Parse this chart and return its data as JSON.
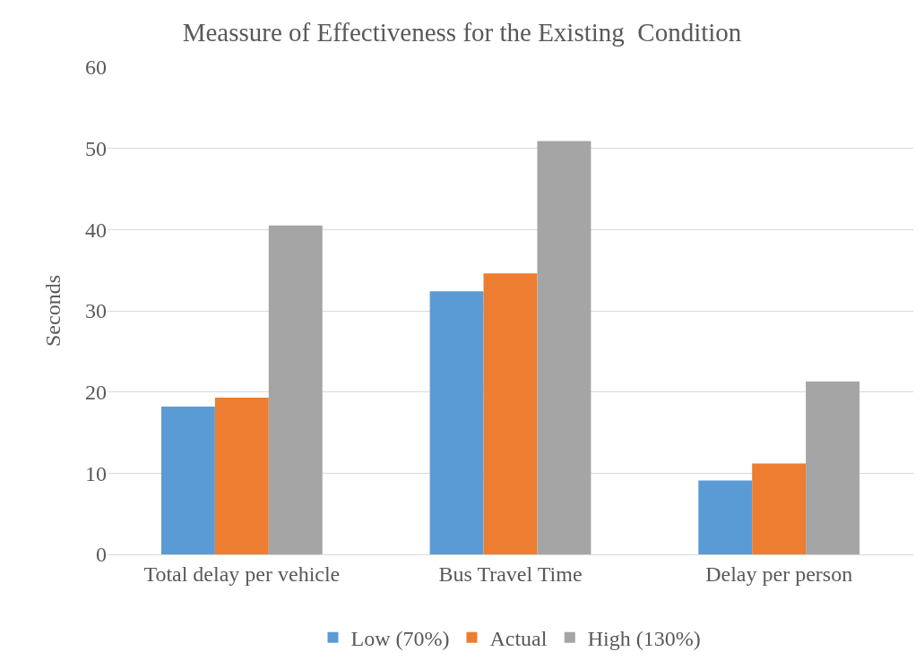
{
  "chart_data": {
    "type": "bar",
    "title": "Meassure of Effectiveness for the Existing  Condition",
    "ylabel": "Seconds",
    "categories": [
      "Total delay per vehicle",
      "Bus Travel Time",
      "Delay per person"
    ],
    "series": [
      {
        "name": "Low (70%)",
        "color": "#5b9bd5",
        "values": [
          18.2,
          32.4,
          9.1
        ]
      },
      {
        "name": "Actual",
        "color": "#ed7d31",
        "values": [
          19.3,
          34.6,
          11.2
        ]
      },
      {
        "name": "High (130%)",
        "color": "#a5a5a5",
        "values": [
          40.5,
          50.9,
          21.3
        ]
      }
    ],
    "ylim": [
      0,
      60
    ],
    "yticks": [
      0,
      10,
      20,
      30,
      40,
      50,
      60
    ],
    "grid": "y",
    "legend": "bottom"
  }
}
